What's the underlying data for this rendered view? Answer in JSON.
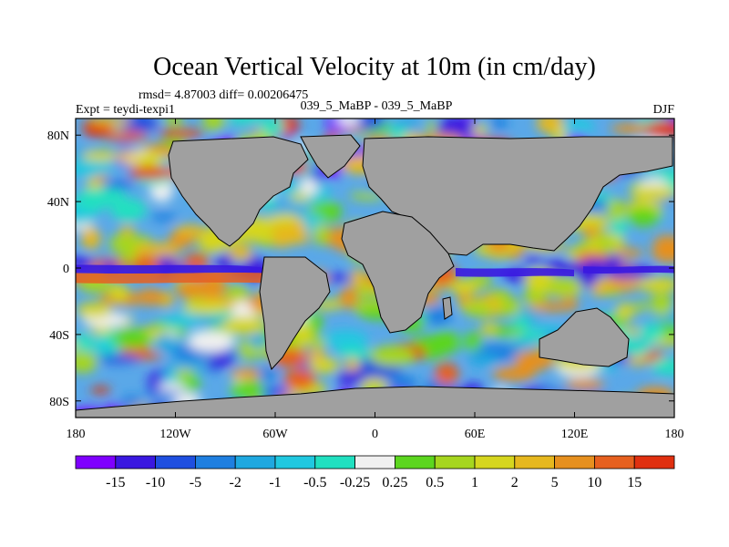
{
  "chart_data": {
    "type": "heatmap",
    "title": "Ocean Vertical Velocity at 10m (in cm/day)",
    "subtitle_stats": "rmsd= 4.87003 diff= 0.00206475",
    "experiment": "Expt = teydi-texpi1",
    "comparison": "039_5_MaBP - 039_5_MaBP",
    "season": "DJF",
    "x_range": [
      -180,
      180
    ],
    "y_range": [
      -90,
      90
    ],
    "x_ticks": [
      {
        "value": -180,
        "label": "180"
      },
      {
        "value": -120,
        "label": "120W"
      },
      {
        "value": -60,
        "label": "60W"
      },
      {
        "value": 0,
        "label": "0"
      },
      {
        "value": 60,
        "label": "60E"
      },
      {
        "value": 120,
        "label": "120E"
      },
      {
        "value": 180,
        "label": "180"
      }
    ],
    "y_ticks": [
      {
        "value": 80,
        "label": "80N"
      },
      {
        "value": 40,
        "label": "40N"
      },
      {
        "value": 0,
        "label": "0"
      },
      {
        "value": -40,
        "label": "40S"
      },
      {
        "value": -80,
        "label": "80S"
      }
    ],
    "colorbar": {
      "colors": [
        "#7f00ff",
        "#3a18e0",
        "#1f4fe0",
        "#1f7fe0",
        "#1fa8e0",
        "#20c8e0",
        "#20e0c0",
        "#f0f0f0",
        "#5cd61f",
        "#a6d61f",
        "#d6d61f",
        "#e6b81f",
        "#e6901f",
        "#e6601f",
        "#e03010"
      ],
      "levels": [
        "-15",
        "-10",
        "-5",
        "-2",
        "-1",
        "-0.5",
        "-0.25",
        "0.25",
        "0.5",
        "1",
        "2",
        "5",
        "10",
        "15"
      ]
    }
  }
}
